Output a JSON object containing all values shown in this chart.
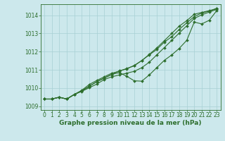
{
  "xlabel": "Graphe pression niveau de la mer (hPa)",
  "bg_color": "#cce8ec",
  "grid_color": "#a8d0d4",
  "line_color": "#2d6e2d",
  "text_color": "#2d6e2d",
  "ylim": [
    1008.8,
    1014.6
  ],
  "xlim": [
    -0.5,
    23.5
  ],
  "yticks": [
    1009,
    1010,
    1011,
    1012,
    1013,
    1014
  ],
  "xticks": [
    0,
    1,
    2,
    3,
    4,
    5,
    6,
    7,
    8,
    9,
    10,
    11,
    12,
    13,
    14,
    15,
    16,
    17,
    18,
    19,
    20,
    21,
    22,
    23
  ],
  "series": [
    [
      1009.4,
      1009.4,
      1009.5,
      1009.4,
      1009.65,
      1009.85,
      1010.1,
      1010.35,
      1010.55,
      1010.75,
      1010.95,
      1011.05,
      1011.25,
      1011.5,
      1011.85,
      1012.2,
      1012.6,
      1013.0,
      1013.4,
      1013.7,
      1014.05,
      1014.15,
      1014.25,
      1014.35
    ],
    [
      1009.4,
      1009.4,
      1009.5,
      1009.4,
      1009.65,
      1009.85,
      1010.1,
      1010.35,
      1010.55,
      1010.75,
      1010.85,
      1010.65,
      1010.4,
      1010.38,
      1010.72,
      1011.12,
      1011.52,
      1011.82,
      1012.18,
      1012.62,
      1013.62,
      1013.52,
      1013.72,
      1014.25
    ],
    [
      1009.4,
      1009.4,
      1009.5,
      1009.4,
      1009.65,
      1009.88,
      1010.2,
      1010.42,
      1010.62,
      1010.82,
      1010.92,
      1011.08,
      1011.22,
      1011.52,
      1011.82,
      1012.12,
      1012.52,
      1012.82,
      1013.22,
      1013.58,
      1013.92,
      1014.12,
      1014.22,
      1014.38
    ],
    [
      1009.4,
      1009.4,
      1009.5,
      1009.4,
      1009.65,
      1009.82,
      1010.02,
      1010.22,
      1010.47,
      1010.62,
      1010.72,
      1010.82,
      1010.92,
      1011.12,
      1011.42,
      1011.82,
      1012.22,
      1012.62,
      1013.02,
      1013.42,
      1013.82,
      1014.02,
      1014.17,
      1014.32
    ]
  ],
  "marker": "D",
  "markersize": 2.0,
  "linewidth": 0.8,
  "tick_fontsize": 5.5,
  "xlabel_fontsize": 6.5
}
